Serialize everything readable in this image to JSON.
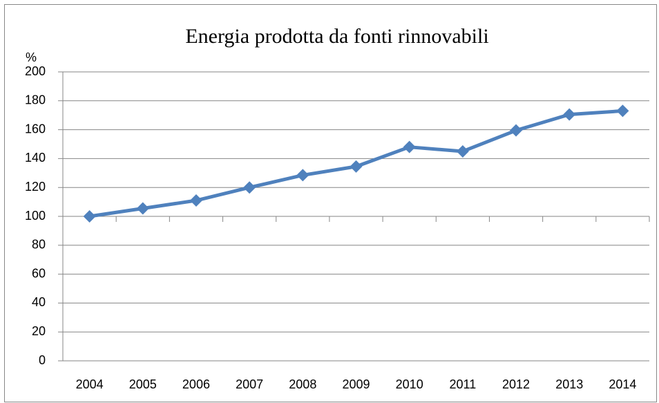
{
  "chart_data": {
    "type": "line",
    "title": "Energia prodotta da fonti rinnovabili",
    "y_label": "%",
    "categories": [
      "2004",
      "2005",
      "2006",
      "2007",
      "2008",
      "2009",
      "2010",
      "2011",
      "2012",
      "2013",
      "2014"
    ],
    "series": [
      {
        "color": "#4f81bd",
        "values": [
          100,
          105.5,
          111,
          120,
          128.5,
          134.5,
          148,
          145,
          159.5,
          170.5,
          173
        ]
      }
    ],
    "ylim": [
      0,
      200
    ],
    "yticks": [
      0,
      20,
      40,
      60,
      80,
      100,
      120,
      140,
      160,
      180,
      200
    ],
    "grid": true,
    "x_axis_crosses": 100
  }
}
